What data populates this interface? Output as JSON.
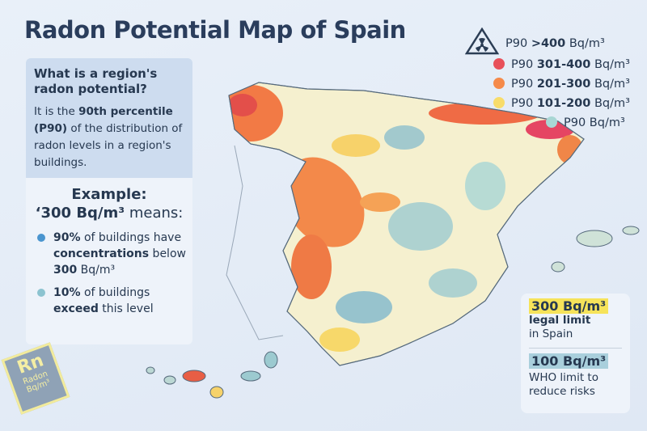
{
  "title": "Radon Potential Map of Spain",
  "info": {
    "heading": "What is a region's radon potential?",
    "body_pre": "It is the ",
    "body_bold1": "90th percentile",
    "body_bold2": "(P90)",
    "body_post": " of the distribution of radon levels in a region's buildings."
  },
  "example": {
    "heading": "Example:",
    "value": "‘300 Bq/m³",
    "means": " means:",
    "bullets": [
      {
        "b1": "90%",
        "t1": " of buildings have ",
        "b2": "concentrations",
        "t2": " below ",
        "b3": "300",
        "t3": " Bq/m³",
        "color": "#4a95cf"
      },
      {
        "b1": "10%",
        "t1": " of buildings ",
        "b2": "exceed",
        "t2": " this level",
        "color": "#8cc3d0"
      }
    ]
  },
  "legend": [
    {
      "pre": "P90 ",
      "bold": ">400",
      "post": " Bq/m³",
      "icon": "radiation-warning-icon"
    },
    {
      "pre": "P90 ",
      "bold": "301-400",
      "post": " Bq/m³",
      "color": "#e8505a"
    },
    {
      "pre": "P90 ",
      "bold": "201-300",
      "post": " Bq/m³",
      "color": "#f58a4a"
    },
    {
      "pre": "P90 ",
      "bold": "101-200",
      "post": " Bq/m³",
      "color": "#f8dc6a"
    },
    {
      "pre": "P90",
      "bold": "",
      "post": " Bq/m³",
      "color": "#a8d6d4"
    }
  ],
  "limits": {
    "legal_value": "300 Bq/m³",
    "legal_bold": "legal limit",
    "legal_text": "in Spain",
    "legal_color": "#f6e35a",
    "who_value": "100 Bq/m³",
    "who_text": "WHO limit to reduce risks",
    "who_color": "#a9cfdc"
  },
  "badge": {
    "symbol": "Rn",
    "name": "Radon",
    "unit": "Bq/m³"
  }
}
